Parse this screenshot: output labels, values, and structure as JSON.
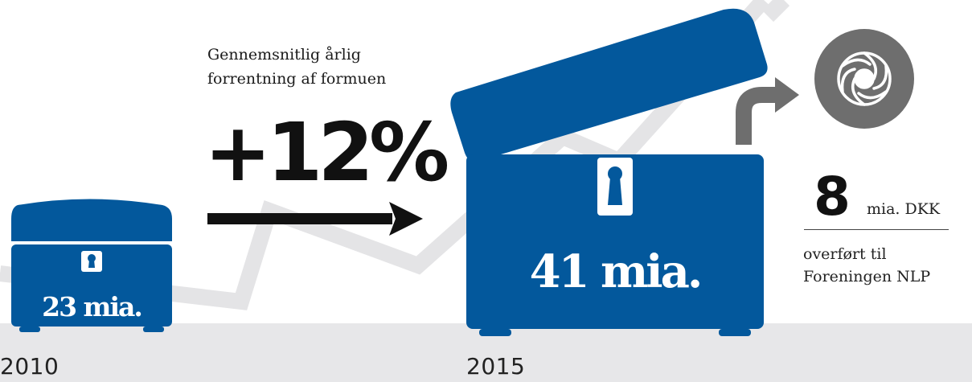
{
  "timeline": {
    "start_year": "2010",
    "end_year": "2015"
  },
  "growth": {
    "caption_line1": "Gennemsnitlig årlig",
    "caption_line2": "forrentning af formuen",
    "rate": "+12%"
  },
  "chests": {
    "small_value": "23 mia.",
    "big_value": "41 mia."
  },
  "transfer": {
    "amount": "8",
    "unit": "mia. DKK",
    "line1": "overført til",
    "line2": "Foreningen NLP"
  },
  "colors": {
    "chest_blue": "#03589c",
    "ground_gray": "#e7e7e9",
    "trend_line": "#e4e4e6",
    "logo_gray": "#6e6e6e",
    "text_dark": "#111111"
  },
  "icons": [
    "keyhole-icon",
    "right-arrow-icon",
    "curved-arrow-icon",
    "foundation-logo-icon"
  ]
}
